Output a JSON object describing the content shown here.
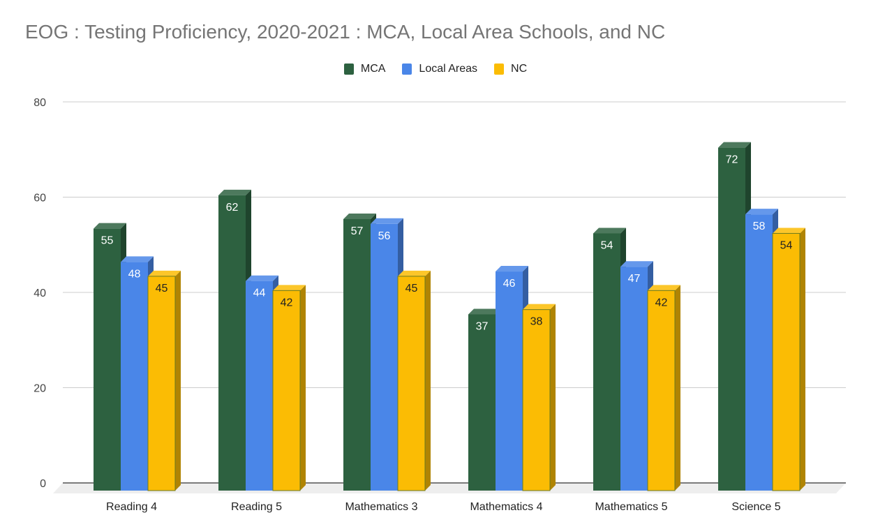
{
  "chart_data": {
    "type": "bar",
    "style": "3d-grouped",
    "title": "EOG : Testing Proficiency, 2020-2021 : MCA, Local Area Schools, and NC",
    "xlabel": "",
    "ylabel": "",
    "ylim": [
      0,
      80
    ],
    "yticks": [
      0,
      20,
      40,
      60,
      80
    ],
    "grid": true,
    "legend_position": "top",
    "categories": [
      "Reading 4",
      "Reading 5",
      "Mathematics 3",
      "Mathematics 4",
      "Mathematics 5",
      "Science 5"
    ],
    "series": [
      {
        "name": "MCA",
        "color": "#2d6140",
        "label_color": "#ffffff",
        "values": [
          55,
          62,
          57,
          37,
          54,
          72
        ]
      },
      {
        "name": "Local Areas",
        "color": "#4a86e8",
        "label_color": "#ffffff",
        "values": [
          48,
          44,
          56,
          46,
          47,
          58
        ]
      },
      {
        "name": "NC",
        "color": "#fbbc04",
        "label_color": "#222222",
        "values": [
          45,
          42,
          45,
          38,
          42,
          54
        ]
      }
    ]
  }
}
